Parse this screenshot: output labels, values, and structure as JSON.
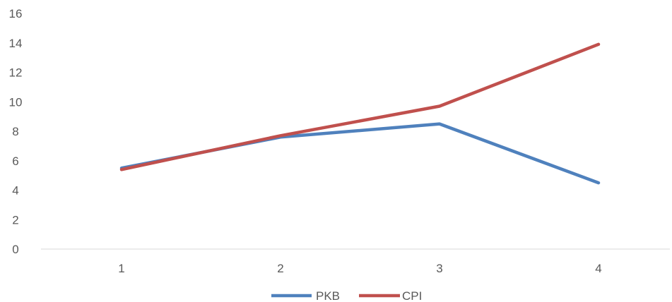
{
  "chart_data": {
    "type": "line",
    "x": [
      "1",
      "2",
      "3",
      "4"
    ],
    "series": [
      {
        "name": "PKB",
        "values": [
          5.5,
          7.6,
          8.5,
          4.5
        ],
        "color": "#4F81BD"
      },
      {
        "name": "CPI",
        "values": [
          5.4,
          7.7,
          9.7,
          13.9
        ],
        "color": "#C0504D"
      }
    ],
    "ylim": [
      0,
      16
    ],
    "yticks": [
      0,
      2,
      4,
      6,
      8,
      10,
      12,
      14,
      16
    ],
    "grid": false,
    "legend_position": "bottom"
  }
}
